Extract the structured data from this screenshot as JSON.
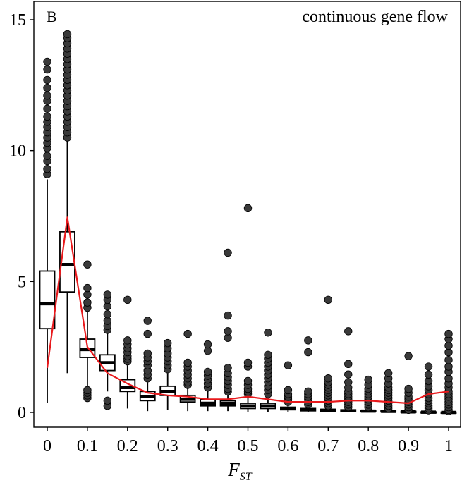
{
  "chart_data": {
    "type": "box",
    "panel_label": "B",
    "title": "continuous gene flow",
    "xlabel": "F",
    "xlabel_sub": "ST",
    "ylabel": "",
    "xlim": [
      0,
      1
    ],
    "ylim": [
      0,
      15
    ],
    "x_ticks": [
      0,
      0.1,
      0.2,
      0.3,
      0.4,
      0.5,
      0.6,
      0.7,
      0.8,
      0.9,
      1
    ],
    "x_tick_labels": [
      "0",
      "0.1",
      "0.2",
      "0.3",
      "0.4",
      "0.5",
      "0.6",
      "0.7",
      "0.8",
      "0.9",
      "1"
    ],
    "y_ticks": [
      0,
      5,
      10,
      15
    ],
    "y_tick_labels": [
      "0",
      "5",
      "10",
      "15"
    ],
    "grid": false,
    "colors": {
      "box_fill": "#ffffff",
      "box_stroke": "#000000",
      "outlier_fill": "#3a3a3a",
      "trend_line": "#e8191c"
    },
    "boxes": [
      {
        "x": 0.0,
        "q1": 3.2,
        "median": 4.15,
        "q3": 5.4,
        "whisker_low": 0.35,
        "whisker_high": 8.9,
        "outliers": [
          9.1,
          9.3,
          9.6,
          9.8,
          10.1,
          10.3,
          10.5,
          10.7,
          10.9,
          11.1,
          11.3,
          11.6,
          11.9,
          12.1,
          12.4,
          12.7,
          13.1,
          13.4
        ]
      },
      {
        "x": 0.05,
        "q1": 4.6,
        "median": 5.65,
        "q3": 6.9,
        "whisker_low": 1.5,
        "whisker_high": 10.4,
        "outliers": [
          10.5,
          10.7,
          10.9,
          11.1,
          11.3,
          11.5,
          11.7,
          11.9,
          12.1,
          12.3,
          12.5,
          12.7,
          12.9,
          13.1,
          13.3,
          13.5,
          13.7,
          13.9,
          14.1,
          14.3,
          14.45
        ]
      },
      {
        "x": 0.1,
        "q1": 2.1,
        "median": 2.4,
        "q3": 2.8,
        "whisker_low": 0.95,
        "whisker_high": 3.9,
        "outliers": [
          0.55,
          0.65,
          0.75,
          0.85,
          4.0,
          4.2,
          4.5,
          4.75,
          5.65
        ]
      },
      {
        "x": 0.15,
        "q1": 1.6,
        "median": 1.9,
        "q3": 2.2,
        "whisker_low": 0.8,
        "whisker_high": 3.0,
        "outliers": [
          0.25,
          0.45,
          3.15,
          3.3,
          3.5,
          3.75,
          4.05,
          4.3,
          4.5
        ]
      },
      {
        "x": 0.2,
        "q1": 0.8,
        "median": 0.95,
        "q3": 1.25,
        "whisker_low": 0.15,
        "whisker_high": 1.8,
        "outliers": [
          1.95,
          2.05,
          2.15,
          2.3,
          2.45,
          2.6,
          2.75,
          4.3
        ]
      },
      {
        "x": 0.25,
        "q1": 0.45,
        "median": 0.6,
        "q3": 0.8,
        "whisker_low": 0.05,
        "whisker_high": 1.15,
        "outliers": [
          1.3,
          1.45,
          1.6,
          1.8,
          1.95,
          2.1,
          2.25,
          3.0,
          3.5
        ]
      },
      {
        "x": 0.3,
        "q1": 0.65,
        "median": 0.8,
        "q3": 1.0,
        "whisker_low": 0.1,
        "whisker_high": 1.5,
        "outliers": [
          1.65,
          1.8,
          1.95,
          2.1,
          2.25,
          2.45,
          2.65
        ]
      },
      {
        "x": 0.35,
        "q1": 0.4,
        "median": 0.5,
        "q3": 0.65,
        "whisker_low": 0.05,
        "whisker_high": 0.95,
        "outliers": [
          1.05,
          1.15,
          1.3,
          1.45,
          1.6,
          1.75,
          1.9,
          3.0
        ]
      },
      {
        "x": 0.4,
        "q1": 0.25,
        "median": 0.35,
        "q3": 0.5,
        "whisker_low": 0.05,
        "whisker_high": 0.85,
        "outliers": [
          0.95,
          1.1,
          1.25,
          1.4,
          1.55,
          2.35,
          2.6
        ]
      },
      {
        "x": 0.45,
        "q1": 0.25,
        "median": 0.35,
        "q3": 0.45,
        "whisker_low": 0.05,
        "whisker_high": 0.7,
        "outliers": [
          0.8,
          0.9,
          1.05,
          1.2,
          1.35,
          1.5,
          1.7,
          2.85,
          3.1,
          3.7,
          6.1
        ]
      },
      {
        "x": 0.5,
        "q1": 0.15,
        "median": 0.25,
        "q3": 0.35,
        "whisker_low": 0.02,
        "whisker_high": 0.6,
        "outliers": [
          0.7,
          0.8,
          0.9,
          1.05,
          1.2,
          1.75,
          1.9,
          7.8
        ]
      },
      {
        "x": 0.55,
        "q1": 0.15,
        "median": 0.25,
        "q3": 0.35,
        "whisker_low": 0.02,
        "whisker_high": 0.6,
        "outliers": [
          0.7,
          0.85,
          1.0,
          1.15,
          1.3,
          1.45,
          1.6,
          1.75,
          1.9,
          2.05,
          2.2,
          3.05
        ]
      },
      {
        "x": 0.6,
        "q1": 0.1,
        "median": 0.15,
        "q3": 0.2,
        "whisker_low": 0.02,
        "whisker_high": 0.35,
        "outliers": [
          0.4,
          0.5,
          0.6,
          0.7,
          0.85,
          1.8
        ]
      },
      {
        "x": 0.65,
        "q1": 0.06,
        "median": 0.1,
        "q3": 0.15,
        "whisker_low": 0.01,
        "whisker_high": 0.25,
        "outliers": [
          0.3,
          0.4,
          0.5,
          0.6,
          0.7,
          0.8,
          2.3,
          2.75
        ]
      },
      {
        "x": 0.7,
        "q1": 0.05,
        "median": 0.08,
        "q3": 0.12,
        "whisker_low": 0.01,
        "whisker_high": 0.2,
        "outliers": [
          0.25,
          0.35,
          0.45,
          0.55,
          0.65,
          0.75,
          0.85,
          0.95,
          1.05,
          1.15,
          1.3,
          4.3
        ]
      },
      {
        "x": 0.75,
        "q1": 0.04,
        "median": 0.06,
        "q3": 0.1,
        "whisker_low": 0.0,
        "whisker_high": 0.16,
        "outliers": [
          0.2,
          0.3,
          0.4,
          0.5,
          0.6,
          0.7,
          0.8,
          0.95,
          1.15,
          1.45,
          1.85,
          3.1
        ]
      },
      {
        "x": 0.8,
        "q1": 0.03,
        "median": 0.05,
        "q3": 0.08,
        "whisker_low": 0.0,
        "whisker_high": 0.14,
        "outliers": [
          0.2,
          0.3,
          0.4,
          0.5,
          0.6,
          0.7,
          0.8,
          0.9,
          1.05,
          1.25
        ]
      },
      {
        "x": 0.85,
        "q1": 0.02,
        "median": 0.04,
        "q3": 0.06,
        "whisker_low": 0.0,
        "whisker_high": 0.1,
        "outliers": [
          0.15,
          0.25,
          0.35,
          0.45,
          0.55,
          0.65,
          0.75,
          0.85,
          0.95,
          1.1,
          1.3,
          1.5
        ]
      },
      {
        "x": 0.9,
        "q1": 0.01,
        "median": 0.02,
        "q3": 0.04,
        "whisker_low": 0.0,
        "whisker_high": 0.06,
        "outliers": [
          0.1,
          0.2,
          0.3,
          0.4,
          0.5,
          0.6,
          0.75,
          0.9,
          2.15
        ]
      },
      {
        "x": 0.95,
        "q1": 0.0,
        "median": 0.01,
        "q3": 0.02,
        "whisker_low": 0.0,
        "whisker_high": 0.04,
        "outliers": [
          0.08,
          0.15,
          0.25,
          0.35,
          0.45,
          0.55,
          0.7,
          0.85,
          1.0,
          1.2,
          1.45,
          1.75
        ]
      },
      {
        "x": 1.0,
        "q1": 0.0,
        "median": 0.0,
        "q3": 0.01,
        "whisker_low": 0.0,
        "whisker_high": 0.02,
        "outliers": [
          0.05,
          0.1,
          0.2,
          0.3,
          0.4,
          0.5,
          0.6,
          0.7,
          0.8,
          0.95,
          1.1,
          1.3,
          1.55,
          1.75,
          2.0,
          2.3,
          2.55,
          2.8,
          3.0
        ]
      }
    ],
    "trend_line": {
      "x": [
        0.0,
        0.05,
        0.1,
        0.15,
        0.2,
        0.25,
        0.3,
        0.35,
        0.4,
        0.45,
        0.5,
        0.55,
        0.6,
        0.65,
        0.7,
        0.75,
        0.8,
        0.85,
        0.9,
        0.95,
        1.0
      ],
      "y": [
        1.7,
        7.45,
        2.5,
        1.5,
        1.1,
        0.75,
        0.65,
        0.6,
        0.5,
        0.5,
        0.6,
        0.5,
        0.4,
        0.4,
        0.4,
        0.45,
        0.45,
        0.4,
        0.35,
        0.7,
        0.8
      ]
    }
  }
}
